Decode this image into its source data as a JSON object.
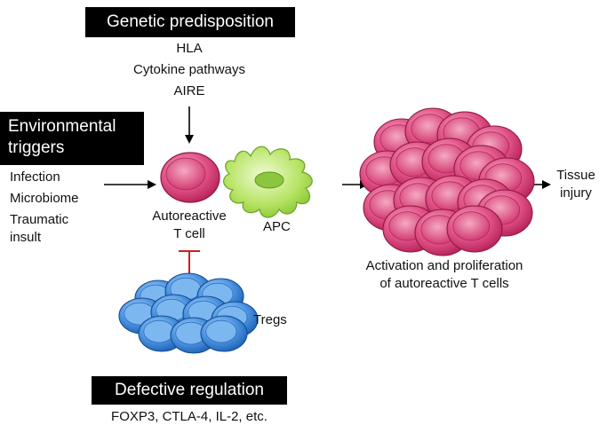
{
  "genetic": {
    "header": "Genetic predisposition",
    "items": [
      "HLA",
      "Cytokine pathways",
      "AIRE"
    ]
  },
  "environmental": {
    "header_line1": "Environmental",
    "header_line2": "triggers",
    "items": [
      "Infection",
      "Microbiome",
      "Traumatic",
      "insult"
    ]
  },
  "center": {
    "tcell_line1": "Autoreactive",
    "tcell_line2": "T cell",
    "apc": "APC"
  },
  "proliferation": {
    "line1": "Activation and proliferation",
    "line2": "of autoreactive T cells"
  },
  "outcome": {
    "line1": "Tissue",
    "line2": "injury"
  },
  "regulation": {
    "tregs": "Tregs",
    "header": "Defective regulation",
    "items": "FOXP3, CTLA-4, IL-2, etc."
  },
  "colors": {
    "tcell": "#d9457a",
    "apc": "#9fd64a",
    "treg": "#3f86d6",
    "inhibit": "#cc1f1f"
  }
}
